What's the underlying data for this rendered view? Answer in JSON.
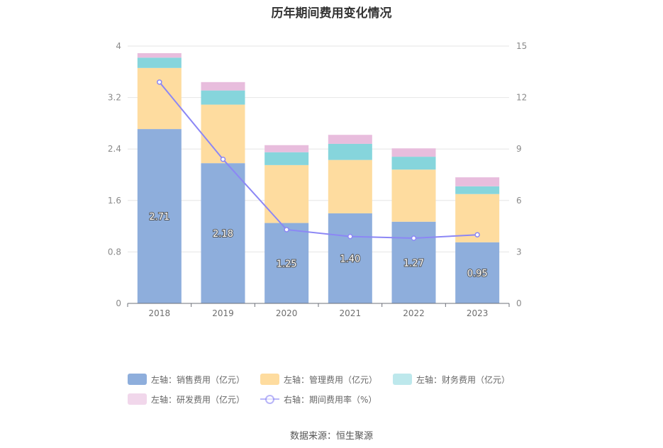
{
  "title": "历年期间费用变化情况",
  "source": "数据来源：恒生聚源",
  "legend": [
    {
      "label": "左轴：销售费用（亿元）",
      "color": "#8eaedc",
      "kind": "bar"
    },
    {
      "label": "左轴：管理费用（亿元）",
      "color": "#fedc9f",
      "kind": "bar"
    },
    {
      "label": "左轴：财务费用（亿元）",
      "color": "#86d5dc",
      "kind": "bar"
    },
    {
      "label": "左轴：研发费用（亿元）",
      "color": "#e8bddd",
      "kind": "bar"
    },
    {
      "label": "右轴：期间费用率（%）",
      "color": "#8c87f5",
      "kind": "line"
    }
  ],
  "chart_data": {
    "type": "bar",
    "stacked": true,
    "categories": [
      "2018",
      "2019",
      "2020",
      "2021",
      "2022",
      "2023"
    ],
    "series": [
      {
        "name": "左轴：销售费用（亿元）",
        "axis": "left",
        "color": "#8eaedc",
        "values": [
          2.71,
          2.18,
          1.25,
          1.4,
          1.27,
          0.95
        ],
        "labels": [
          "2.71",
          "2.18",
          "1.25",
          "1.40",
          "1.27",
          "0.95"
        ]
      },
      {
        "name": "左轴：管理费用（亿元）",
        "axis": "left",
        "color": "#fedc9f",
        "values": [
          0.95,
          0.91,
          0.9,
          0.83,
          0.81,
          0.75
        ]
      },
      {
        "name": "左轴：财务费用（亿元）",
        "axis": "left",
        "color": "#86d5dc",
        "values": [
          0.16,
          0.22,
          0.2,
          0.25,
          0.2,
          0.12
        ]
      },
      {
        "name": "左轴：研发费用（亿元）",
        "axis": "left",
        "color": "#e8bddd",
        "values": [
          0.07,
          0.13,
          0.11,
          0.14,
          0.13,
          0.14
        ]
      },
      {
        "name": "右轴：期间费用率（%）",
        "axis": "right",
        "type": "line",
        "color": "#8c87f5",
        "values": [
          12.9,
          8.4,
          4.3,
          3.9,
          3.8,
          4.0
        ]
      }
    ],
    "left_axis": {
      "ticks": [
        "0",
        "0.8",
        "1.6",
        "2.4",
        "3.2",
        "4"
      ],
      "ylim": [
        0,
        4
      ]
    },
    "right_axis": {
      "ticks": [
        "0",
        "3",
        "6",
        "9",
        "12",
        "15"
      ],
      "ylim": [
        0,
        15
      ]
    },
    "grid": true,
    "legend_position": "bottom"
  }
}
